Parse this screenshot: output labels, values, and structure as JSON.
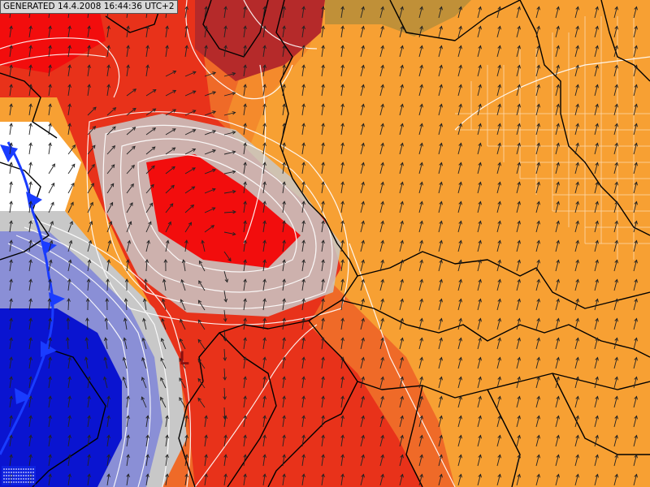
{
  "header": {
    "generated_text": "GENERATED 14.4.2008 16:44:36 UTC+2"
  },
  "map": {
    "pressure_label": "L",
    "colors": {
      "background": "#f7a033",
      "warm_orange": "#f48a2c",
      "orange_red": "#ef6a28",
      "red": "#e8321a",
      "deep_red": "#f20d0d",
      "dark_red": "#b52a2a",
      "front_blue": "#1a3cff",
      "cold_blue": "#0a14d0",
      "pale_blue": "#8a8fd6",
      "gray": "#c8c8c8",
      "olive": "#c09038",
      "border_black": "#000000",
      "isoline_white": "#ffffff"
    },
    "legend_icon": "hatched-legend-icon",
    "front_icon": "cold-front-triangle-icon"
  }
}
